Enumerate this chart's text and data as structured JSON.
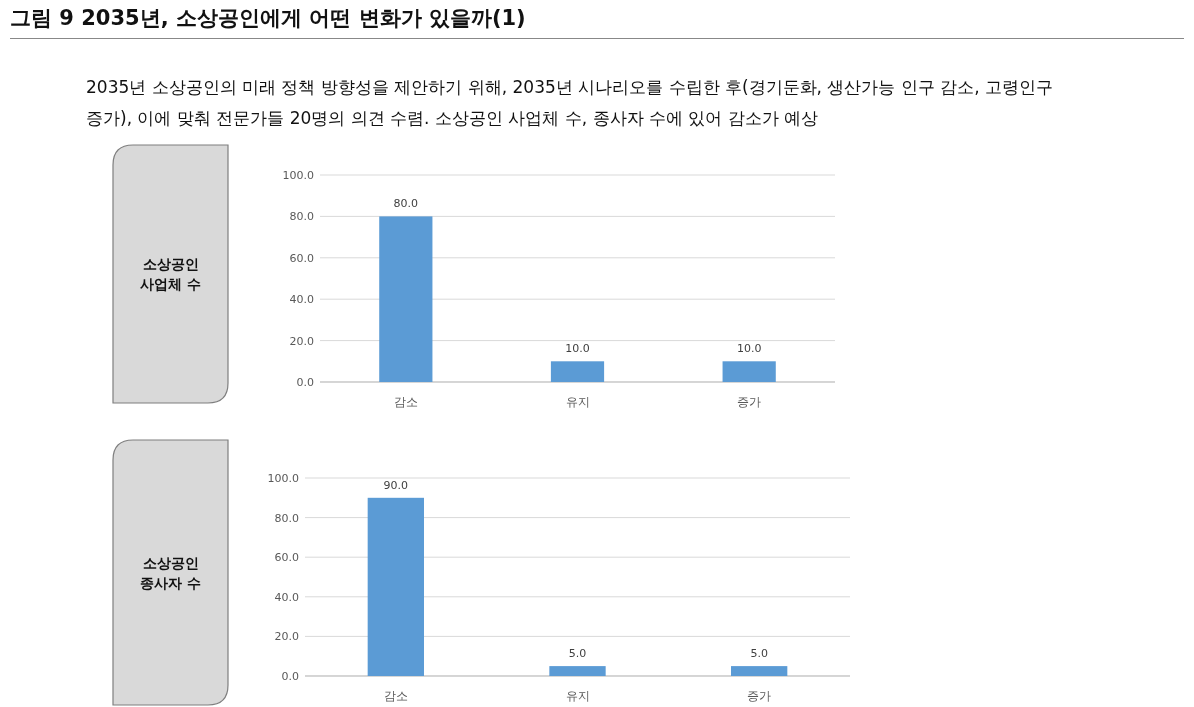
{
  "chart_data": [
    {
      "type": "bar",
      "title": "그림 9  2035년, 소상공인에게 어떤 변화가 있을까(1)",
      "subtitle": "2035년 소상공인의 미래 정책 방향성을 제안하기 위해, 2035년 시나리오를 수립한 후(경기둔화, 생산가능 인구 감소, 고령인구 증가), 이에 맞춰 전문가들 20명의 의견 수렴. 소상공인 사업체 수, 종사자 수에 있어 감소가 예상",
      "ylabel": "소상공인\n사업체 수",
      "categories": [
        "감소",
        "유지",
        "증가"
      ],
      "values": [
        80,
        10,
        10
      ],
      "value_labels": [
        "80.0",
        "10.0",
        "10.0"
      ],
      "color": "#5b9bd5",
      "ylim": [
        0,
        100
      ],
      "yticks": [
        {
          "value": 0,
          "label": "0.0"
        },
        {
          "value": 20,
          "label": "20.0"
        },
        {
          "value": 40,
          "label": "40.0"
        },
        {
          "value": 60,
          "label": "60.0"
        },
        {
          "value": 80,
          "label": "80.0"
        },
        {
          "value": 100,
          "label": "100.0"
        }
      ],
      "grid": "y"
    },
    {
      "type": "bar",
      "ylabel": "소상공인\n종사자 수",
      "categories": [
        "감소",
        "유지",
        "증가"
      ],
      "values": [
        90,
        5,
        5
      ],
      "value_labels": [
        "90.0",
        "5.0",
        "5.0"
      ],
      "color": "#5b9bd5",
      "ylim": [
        0,
        100
      ],
      "yticks": [
        {
          "value": 0,
          "label": "0.0"
        },
        {
          "value": 20,
          "label": "20.0"
        },
        {
          "value": 40,
          "label": "40.0"
        },
        {
          "value": 60,
          "label": "60.0"
        },
        {
          "value": 80,
          "label": "80.0"
        },
        {
          "value": 100,
          "label": "100.0"
        }
      ],
      "grid": "y"
    }
  ]
}
